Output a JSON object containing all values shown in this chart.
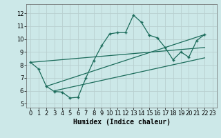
{
  "background_color": "#cce8e8",
  "plot_bg_color": "#cce8e8",
  "grid_color": "#b8d0d0",
  "line_color": "#1a6b5a",
  "xlabel": "Humidex (Indice chaleur)",
  "xlabel_fontsize": 7,
  "ylim": [
    4.7,
    12.7
  ],
  "xlim": [
    -0.5,
    23.5
  ],
  "yticks": [
    5,
    6,
    7,
    8,
    9,
    10,
    11,
    12
  ],
  "xticks": [
    0,
    1,
    2,
    3,
    4,
    5,
    6,
    7,
    8,
    9,
    10,
    11,
    12,
    13,
    14,
    15,
    16,
    17,
    18,
    19,
    20,
    21,
    22,
    23
  ],
  "tick_fontsize": 6,
  "main_x": [
    0,
    1,
    2,
    3,
    4,
    5,
    6,
    7,
    8,
    9,
    10,
    11,
    12,
    13,
    14,
    15,
    16,
    17,
    18,
    19,
    20,
    21,
    22
  ],
  "main_y": [
    8.2,
    7.7,
    6.35,
    5.95,
    5.9,
    5.45,
    5.5,
    7.0,
    8.35,
    9.5,
    10.4,
    10.5,
    10.5,
    11.85,
    11.3,
    10.3,
    10.1,
    9.35,
    8.4,
    9.0,
    8.6,
    9.9,
    10.35
  ],
  "trend1_x": [
    0,
    22
  ],
  "trend1_y": [
    8.2,
    9.35
  ],
  "trend2_x": [
    2,
    22
  ],
  "trend2_y": [
    6.35,
    10.35
  ],
  "trend3_x": [
    3,
    22
  ],
  "trend3_y": [
    6.0,
    8.55
  ],
  "marker": "+",
  "markersize": 3.5,
  "markeredgewidth": 1.0,
  "linewidth": 0.9
}
